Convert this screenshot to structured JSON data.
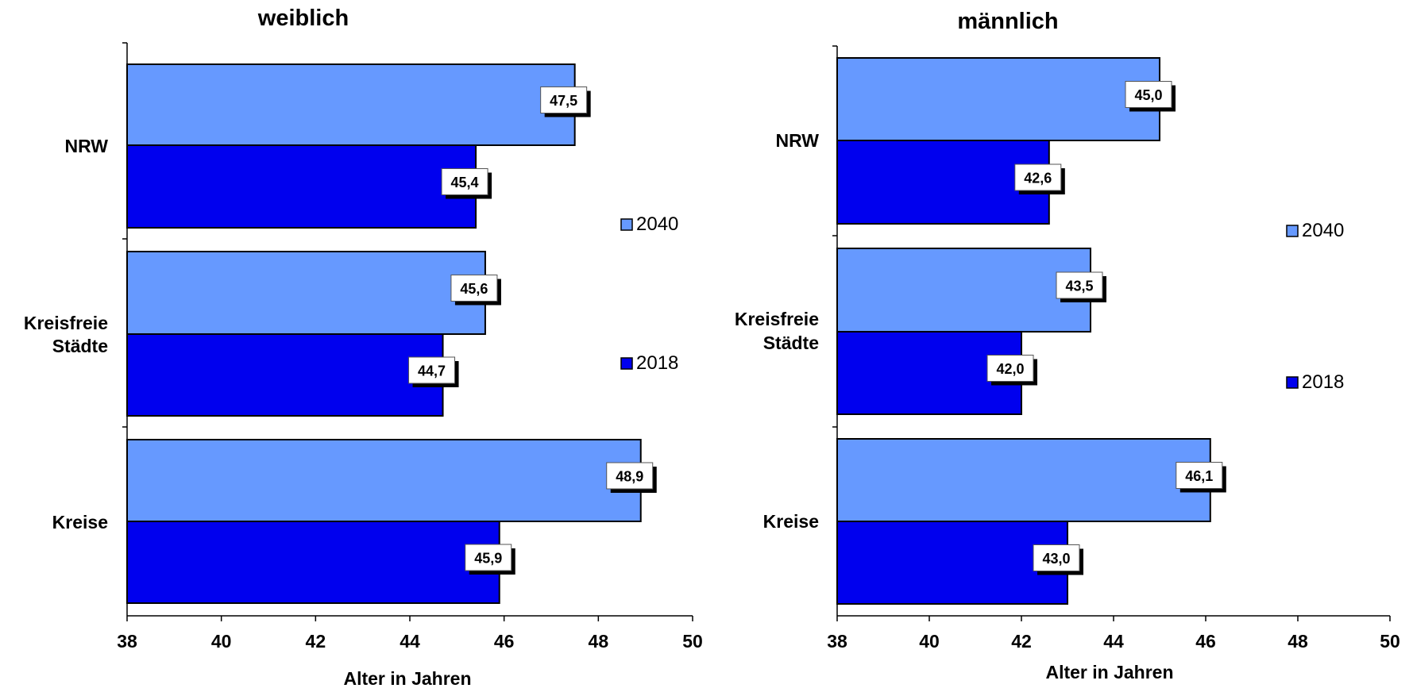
{
  "chart_data": [
    {
      "type": "bar",
      "orientation": "horizontal",
      "title": "weiblich",
      "xlabel": "Alter in Jahren",
      "xlim": [
        38,
        50
      ],
      "xticks": [
        "38",
        "40",
        "42",
        "44",
        "46",
        "48",
        "50"
      ],
      "categories": [
        [
          "NRW"
        ],
        [
          "Kreisfreie",
          "Städte"
        ],
        [
          "Kreise"
        ]
      ],
      "series": [
        {
          "name": "2040",
          "values": [
            47.5,
            45.6,
            48.9
          ],
          "labels": [
            "47,5",
            "45,6",
            "48,9"
          ],
          "color": "#6699ff"
        },
        {
          "name": "2018",
          "values": [
            45.4,
            44.7,
            45.9
          ],
          "labels": [
            "45,4",
            "44,7",
            "45,9"
          ],
          "color": "#0000ee"
        }
      ],
      "legend_position": "right"
    },
    {
      "type": "bar",
      "orientation": "horizontal",
      "title": "männlich",
      "xlabel": "Alter in Jahren",
      "xlim": [
        38,
        50
      ],
      "xticks": [
        "38",
        "40",
        "42",
        "44",
        "46",
        "48",
        "50"
      ],
      "categories": [
        [
          "NRW"
        ],
        [
          "Kreisfreie",
          "Städte"
        ],
        [
          "Kreise"
        ]
      ],
      "series": [
        {
          "name": "2040",
          "values": [
            45.0,
            43.5,
            46.1
          ],
          "labels": [
            "45,0",
            "43,5",
            "46,1"
          ],
          "color": "#6699ff"
        },
        {
          "name": "2018",
          "values": [
            42.6,
            42.0,
            43.0
          ],
          "labels": [
            "42,6",
            "42,0",
            "43,0"
          ],
          "color": "#0000ee"
        }
      ],
      "legend_position": "right"
    }
  ]
}
